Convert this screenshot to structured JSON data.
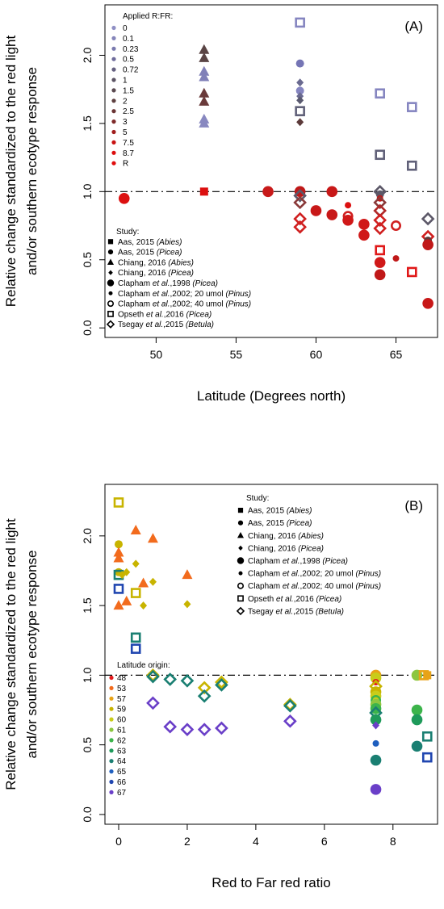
{
  "chart_data": [
    {
      "type": "scatter",
      "panel_label": "(A)",
      "xlabel": "Latitude (Degrees north)",
      "ylabel_line1": "Relative change standardized to the red light",
      "ylabel_line2": "and/or southern ecotype response",
      "xlim": [
        46.8,
        67.6
      ],
      "ylim": [
        -0.07,
        2.37
      ],
      "xticks": [
        "50",
        "55",
        "60",
        "65"
      ],
      "yticks": [
        "0.0",
        "0.5",
        "1.0",
        "1.5",
        "2.0"
      ],
      "reference_line": 1.0,
      "legend_rfr": {
        "title": "Applied R:FR:",
        "entries": [
          {
            "label": "0",
            "color": "#8f8fc4"
          },
          {
            "label": "0.1",
            "color": "#8585ba"
          },
          {
            "label": "0.23",
            "color": "#7a7aae"
          },
          {
            "label": "0.5",
            "color": "#6f6c9b"
          },
          {
            "label": "0.72",
            "color": "#656080"
          },
          {
            "label": "1",
            "color": "#5c5464"
          },
          {
            "label": "1.5",
            "color": "#5a4a50"
          },
          {
            "label": "2",
            "color": "#5e4040"
          },
          {
            "label": "2.5",
            "color": "#6a3434"
          },
          {
            "label": "3",
            "color": "#7e2a2a"
          },
          {
            "label": "5",
            "color": "#a01d1d"
          },
          {
            "label": "7.5",
            "color": "#c81212"
          },
          {
            "label": "8.7",
            "color": "#dc0d0d"
          },
          {
            "label": "R",
            "color": "#e00d0d"
          }
        ]
      },
      "legend_study": {
        "title": "Study:",
        "entries": [
          {
            "symbol": "square",
            "text": "Aas, 2015 ",
            "italic": "(Abies)"
          },
          {
            "symbol": "dot",
            "text": "Aas, 2015 ",
            "italic": "(Picea)"
          },
          {
            "symbol": "triangle",
            "text": "Chiang, 2016 ",
            "italic": "(Abies)"
          },
          {
            "symbol": "diamond",
            "text": "Chiang, 2016 ",
            "italic": "(Picea)"
          },
          {
            "symbol": "bigdot",
            "pre": "Clapham ",
            "et": "et al.",
            "text": ",1998 ",
            "italic": "(Picea)"
          },
          {
            "symbol": "smalldot",
            "pre": "Clapham ",
            "et": "et al.",
            "text": ",2002; 20 umol ",
            "italic": "(Pinus)"
          },
          {
            "symbol": "opencircle",
            "pre": "Clapham ",
            "et": "et al.",
            "text": ",2002; 40 umol ",
            "italic": "(Pinus)"
          },
          {
            "symbol": "opensquare",
            "pre": "Opseth ",
            "et": "et al.",
            "text": ",2016 ",
            "italic": "(Picea)"
          },
          {
            "symbol": "opendiamond",
            "pre": "Tsegay ",
            "et": "et al.",
            "text": ",2015 ",
            "italic": "(Betula)"
          }
        ]
      },
      "points": [
        {
          "x": 48,
          "y": 0.95,
          "m": "bigdot",
          "c": "#dc1010"
        },
        {
          "x": 53,
          "y": 2.04,
          "m": "triangle",
          "c": "#5a4545"
        },
        {
          "x": 53,
          "y": 1.98,
          "m": "triangle",
          "c": "#5a4545"
        },
        {
          "x": 53,
          "y": 1.88,
          "m": "triangle",
          "c": "#8080b8"
        },
        {
          "x": 53,
          "y": 1.84,
          "m": "triangle",
          "c": "#8080b8"
        },
        {
          "x": 53,
          "y": 1.72,
          "m": "triangle",
          "c": "#6a3a3a"
        },
        {
          "x": 53,
          "y": 1.66,
          "m": "triangle",
          "c": "#6a3a3a"
        },
        {
          "x": 53,
          "y": 1.53,
          "m": "triangle",
          "c": "#8888c0"
        },
        {
          "x": 53,
          "y": 1.5,
          "m": "triangle",
          "c": "#8888c0"
        },
        {
          "x": 53,
          "y": 1.0,
          "m": "square",
          "c": "#dc1010"
        },
        {
          "x": 57,
          "y": 1.0,
          "m": "bigdot",
          "c": "#c81a1a"
        },
        {
          "x": 59,
          "y": 2.24,
          "m": "opensquare",
          "c": "#8585c0"
        },
        {
          "x": 59,
          "y": 1.94,
          "m": "dot",
          "c": "#7575b5"
        },
        {
          "x": 59,
          "y": 1.8,
          "m": "diamond",
          "c": "#6a6a90"
        },
        {
          "x": 59,
          "y": 1.74,
          "m": "dot",
          "c": "#8585c0"
        },
        {
          "x": 59,
          "y": 1.7,
          "m": "diamond",
          "c": "#6a6a90"
        },
        {
          "x": 59,
          "y": 1.67,
          "m": "diamond",
          "c": "#5a5a70"
        },
        {
          "x": 59,
          "y": 1.59,
          "m": "opensquare",
          "c": "#606078"
        },
        {
          "x": 59,
          "y": 1.51,
          "m": "diamond",
          "c": "#5c3a3a"
        },
        {
          "x": 59,
          "y": 1.0,
          "m": "bigdot",
          "c": "#c01818"
        },
        {
          "x": 59,
          "y": 0.97,
          "m": "opendiamond",
          "c": "#5c5868"
        },
        {
          "x": 59,
          "y": 0.92,
          "m": "opendiamond",
          "c": "#8a3a3a"
        },
        {
          "x": 59,
          "y": 0.8,
          "m": "opendiamond",
          "c": "#d02020"
        },
        {
          "x": 59,
          "y": 0.74,
          "m": "opendiamond",
          "c": "#d02020"
        },
        {
          "x": 60,
          "y": 0.86,
          "m": "bigdot",
          "c": "#c81818"
        },
        {
          "x": 61,
          "y": 1.0,
          "m": "bigdot",
          "c": "#c81818"
        },
        {
          "x": 61,
          "y": 0.83,
          "m": "bigdot",
          "c": "#c81818"
        },
        {
          "x": 62,
          "y": 0.9,
          "m": "smalldot",
          "c": "#dc1010"
        },
        {
          "x": 62,
          "y": 0.82,
          "m": "opencircle",
          "c": "#d02020"
        },
        {
          "x": 62,
          "y": 0.79,
          "m": "bigdot",
          "c": "#d01818"
        },
        {
          "x": 63,
          "y": 0.76,
          "m": "bigdot",
          "c": "#d01818"
        },
        {
          "x": 63,
          "y": 0.68,
          "m": "bigdot",
          "c": "#d01818"
        },
        {
          "x": 64,
          "y": 1.72,
          "m": "opensquare",
          "c": "#8585c0"
        },
        {
          "x": 64,
          "y": 1.27,
          "m": "opensquare",
          "c": "#606078"
        },
        {
          "x": 64,
          "y": 1.0,
          "m": "opendiamond",
          "c": "#5c5868"
        },
        {
          "x": 64,
          "y": 0.98,
          "m": "dot",
          "c": "#5c5868"
        },
        {
          "x": 64,
          "y": 0.95,
          "m": "smalldot",
          "c": "#c01818"
        },
        {
          "x": 64,
          "y": 0.92,
          "m": "opendiamond",
          "c": "#8a3a3a"
        },
        {
          "x": 64,
          "y": 0.86,
          "m": "opendiamond",
          "c": "#b02828"
        },
        {
          "x": 64,
          "y": 0.79,
          "m": "opendiamond",
          "c": "#d02020"
        },
        {
          "x": 64,
          "y": 0.73,
          "m": "opendiamond",
          "c": "#d02020"
        },
        {
          "x": 64,
          "y": 0.57,
          "m": "opensquare",
          "c": "#e01818"
        },
        {
          "x": 64,
          "y": 0.48,
          "m": "bigdot",
          "c": "#d01818"
        },
        {
          "x": 64,
          "y": 0.39,
          "m": "bigdot",
          "c": "#c01818"
        },
        {
          "x": 65,
          "y": 0.75,
          "m": "opencircle",
          "c": "#d02020"
        },
        {
          "x": 65,
          "y": 0.51,
          "m": "smalldot",
          "c": "#c01818"
        },
        {
          "x": 66,
          "y": 1.62,
          "m": "opensquare",
          "c": "#8585c0"
        },
        {
          "x": 66,
          "y": 1.19,
          "m": "opensquare",
          "c": "#606078"
        },
        {
          "x": 66,
          "y": 0.41,
          "m": "opensquare",
          "c": "#e01818"
        },
        {
          "x": 67,
          "y": 0.8,
          "m": "opendiamond",
          "c": "#5c5868"
        },
        {
          "x": 67,
          "y": 0.67,
          "m": "opendiamond",
          "c": "#d02020"
        },
        {
          "x": 67,
          "y": 0.64,
          "m": "dot",
          "c": "#5c3a3a"
        },
        {
          "x": 67,
          "y": 0.61,
          "m": "bigdot",
          "c": "#c01818"
        },
        {
          "x": 67,
          "y": 0.18,
          "m": "bigdot",
          "c": "#c81818"
        }
      ]
    },
    {
      "type": "scatter",
      "panel_label": "(B)",
      "xlabel": "Red to Far red ratio",
      "ylabel_line1": "Relative change standardized to the red light",
      "ylabel_line2": "and/or southern ecotype response",
      "xlim": [
        -0.4,
        9.3
      ],
      "ylim": [
        -0.07,
        2.37
      ],
      "xticks": [
        "0",
        "2",
        "4",
        "6",
        "8"
      ],
      "yticks": [
        "0.0",
        "0.5",
        "1.0",
        "1.5",
        "2.0"
      ],
      "reference_line": 1.0,
      "legend_study": {
        "title": "Study:",
        "entries": [
          {
            "symbol": "square",
            "text": "Aas, 2015 ",
            "italic": "(Abies)"
          },
          {
            "symbol": "dot",
            "text": "Aas, 2015 ",
            "italic": "(Picea)"
          },
          {
            "symbol": "triangle",
            "text": "Chiang, 2016 ",
            "italic": "(Abies)"
          },
          {
            "symbol": "diamond",
            "text": "Chiang, 2016 ",
            "italic": "(Picea)"
          },
          {
            "symbol": "bigdot",
            "pre": "Clapham ",
            "et": "et al.",
            "text": ",1998 ",
            "italic": "(Picea)"
          },
          {
            "symbol": "smalldot",
            "pre": "Clapham ",
            "et": "et al.",
            "text": ",2002; 20 umol ",
            "italic": "(Pinus)"
          },
          {
            "symbol": "opencircle",
            "pre": "Clapham ",
            "et": "et al.",
            "text": ",2002; 40 umol ",
            "italic": "(Pinus)"
          },
          {
            "symbol": "opensquare",
            "pre": "Opseth ",
            "et": "et al.",
            "text": ",2016 ",
            "italic": "(Picea)"
          },
          {
            "symbol": "opendiamond",
            "pre": "Tsegay ",
            "et": "et al.",
            "text": ",2015 ",
            "italic": "(Betula)"
          }
        ]
      },
      "legend_latitude": {
        "title": "Latitude origin:",
        "entries": [
          {
            "label": "48",
            "color": "#e41a1c"
          },
          {
            "label": "53",
            "color": "#f26b1d"
          },
          {
            "label": "57",
            "color": "#e8a317"
          },
          {
            "label": "59",
            "color": "#c8b400"
          },
          {
            "label": "60",
            "color": "#c9cc1a"
          },
          {
            "label": "61",
            "color": "#8cc63f"
          },
          {
            "label": "62",
            "color": "#3cb44b"
          },
          {
            "label": "63",
            "color": "#1e9a5a"
          },
          {
            "label": "64",
            "color": "#1a7f72"
          },
          {
            "label": "65",
            "color": "#1f5fbf"
          },
          {
            "label": "66",
            "color": "#2046b0"
          },
          {
            "label": "67",
            "color": "#6a3fc8"
          }
        ]
      },
      "points": [
        {
          "x": 0,
          "y": 2.24,
          "m": "opensquare",
          "c": "#c8b400"
        },
        {
          "x": 0,
          "y": 1.94,
          "m": "dot",
          "c": "#c8b400"
        },
        {
          "x": 0,
          "y": 1.88,
          "m": "triangle",
          "c": "#f26b1d"
        },
        {
          "x": 0,
          "y": 1.84,
          "m": "triangle",
          "c": "#f26b1d"
        },
        {
          "x": 0,
          "y": 1.74,
          "m": "dot",
          "c": "#c8b400"
        },
        {
          "x": 0,
          "y": 1.72,
          "m": "opensquare",
          "c": "#1a7f72"
        },
        {
          "x": 0,
          "y": 1.62,
          "m": "opensquare",
          "c": "#2046b0"
        },
        {
          "x": 0,
          "y": 1.5,
          "m": "triangle",
          "c": "#f26b1d"
        },
        {
          "x": 0.1,
          "y": 1.72,
          "m": "diamond",
          "c": "#c8b400"
        },
        {
          "x": 0.23,
          "y": 1.74,
          "m": "diamond",
          "c": "#c8b400"
        },
        {
          "x": 0.23,
          "y": 1.53,
          "m": "triangle",
          "c": "#f26b1d"
        },
        {
          "x": 0.5,
          "y": 2.04,
          "m": "triangle",
          "c": "#f26b1d"
        },
        {
          "x": 0.5,
          "y": 1.8,
          "m": "diamond",
          "c": "#c8b400"
        },
        {
          "x": 0.5,
          "y": 1.59,
          "m": "opensquare",
          "c": "#c8b400"
        },
        {
          "x": 0.5,
          "y": 1.27,
          "m": "opensquare",
          "c": "#1a7f72"
        },
        {
          "x": 0.5,
          "y": 1.19,
          "m": "opensquare",
          "c": "#2046b0"
        },
        {
          "x": 0.72,
          "y": 1.66,
          "m": "triangle",
          "c": "#f26b1d"
        },
        {
          "x": 0.72,
          "y": 1.5,
          "m": "diamond",
          "c": "#c8b400"
        },
        {
          "x": 1,
          "y": 1.98,
          "m": "triangle",
          "c": "#f26b1d"
        },
        {
          "x": 1,
          "y": 1.67,
          "m": "diamond",
          "c": "#c8b400"
        },
        {
          "x": 1,
          "y": 1.0,
          "m": "opendiamond",
          "c": "#c8b400"
        },
        {
          "x": 1,
          "y": 0.99,
          "m": "opendiamond",
          "c": "#1a7f72"
        },
        {
          "x": 1,
          "y": 0.8,
          "m": "opendiamond",
          "c": "#6a3fc8"
        },
        {
          "x": 1.5,
          "y": 0.97,
          "m": "opendiamond",
          "c": "#1a7f72"
        },
        {
          "x": 1.5,
          "y": 0.63,
          "m": "opendiamond",
          "c": "#6a3fc8"
        },
        {
          "x": 2,
          "y": 1.72,
          "m": "triangle",
          "c": "#f26b1d"
        },
        {
          "x": 2,
          "y": 1.51,
          "m": "diamond",
          "c": "#c8b400"
        },
        {
          "x": 2,
          "y": 0.96,
          "m": "opendiamond",
          "c": "#1a7f72"
        },
        {
          "x": 2,
          "y": 0.61,
          "m": "opendiamond",
          "c": "#6a3fc8"
        },
        {
          "x": 2.5,
          "y": 0.91,
          "m": "opendiamond",
          "c": "#c8b400"
        },
        {
          "x": 2.5,
          "y": 0.85,
          "m": "opendiamond",
          "c": "#1a7f72"
        },
        {
          "x": 2.5,
          "y": 0.61,
          "m": "opendiamond",
          "c": "#6a3fc8"
        },
        {
          "x": 3,
          "y": 0.95,
          "m": "opendiamond",
          "c": "#c8b400"
        },
        {
          "x": 3,
          "y": 0.93,
          "m": "opendiamond",
          "c": "#1a7f72"
        },
        {
          "x": 3,
          "y": 0.62,
          "m": "opendiamond",
          "c": "#6a3fc8"
        },
        {
          "x": 5,
          "y": 0.79,
          "m": "opendiamond",
          "c": "#c8b400"
        },
        {
          "x": 5,
          "y": 0.78,
          "m": "opendiamond",
          "c": "#1a7f72"
        },
        {
          "x": 5,
          "y": 0.67,
          "m": "opendiamond",
          "c": "#6a3fc8"
        },
        {
          "x": 7.5,
          "y": 1.0,
          "m": "bigdot",
          "c": "#e8a317"
        },
        {
          "x": 7.5,
          "y": 0.98,
          "m": "bigdot",
          "c": "#c9cc1a"
        },
        {
          "x": 7.5,
          "y": 0.95,
          "m": "smalldot",
          "c": "#e41a1c"
        },
        {
          "x": 7.5,
          "y": 0.92,
          "m": "opendiamond",
          "c": "#c8b400"
        },
        {
          "x": 7.5,
          "y": 0.88,
          "m": "bigdot",
          "c": "#c8b400"
        },
        {
          "x": 7.5,
          "y": 0.85,
          "m": "bigdot",
          "c": "#c9cc1a"
        },
        {
          "x": 7.5,
          "y": 0.82,
          "m": "opencircle",
          "c": "#3cb44b"
        },
        {
          "x": 7.5,
          "y": 0.79,
          "m": "bigdot",
          "c": "#8cc63f"
        },
        {
          "x": 7.5,
          "y": 0.76,
          "m": "bigdot",
          "c": "#3cb44b"
        },
        {
          "x": 7.5,
          "y": 0.73,
          "m": "opendiamond",
          "c": "#1a7f72"
        },
        {
          "x": 7.5,
          "y": 0.68,
          "m": "bigdot",
          "c": "#1e9a5a"
        },
        {
          "x": 7.5,
          "y": 0.64,
          "m": "diamond",
          "c": "#6a3fc8"
        },
        {
          "x": 7.5,
          "y": 0.51,
          "m": "smalldot",
          "c": "#1f5fbf"
        },
        {
          "x": 7.5,
          "y": 0.39,
          "m": "bigdot",
          "c": "#1a7f72"
        },
        {
          "x": 7.5,
          "y": 0.18,
          "m": "bigdot",
          "c": "#6a3fc8"
        },
        {
          "x": 8.7,
          "y": 1.0,
          "m": "bigdot",
          "c": "#8cc63f"
        },
        {
          "x": 8.7,
          "y": 0.75,
          "m": "bigdot",
          "c": "#3cb44b"
        },
        {
          "x": 8.7,
          "y": 0.68,
          "m": "bigdot",
          "c": "#1e9a5a"
        },
        {
          "x": 8.7,
          "y": 0.49,
          "m": "bigdot",
          "c": "#1a7f72"
        },
        {
          "x": 8.9,
          "y": 1.0,
          "m": "opensquare",
          "c": "#e8a317"
        },
        {
          "x": 9.0,
          "y": 1.0,
          "m": "square",
          "c": "#e8a317"
        },
        {
          "x": 9.0,
          "y": 0.56,
          "m": "opensquare",
          "c": "#1a7f72"
        },
        {
          "x": 9.0,
          "y": 0.41,
          "m": "opensquare",
          "c": "#2046b0"
        }
      ]
    }
  ]
}
